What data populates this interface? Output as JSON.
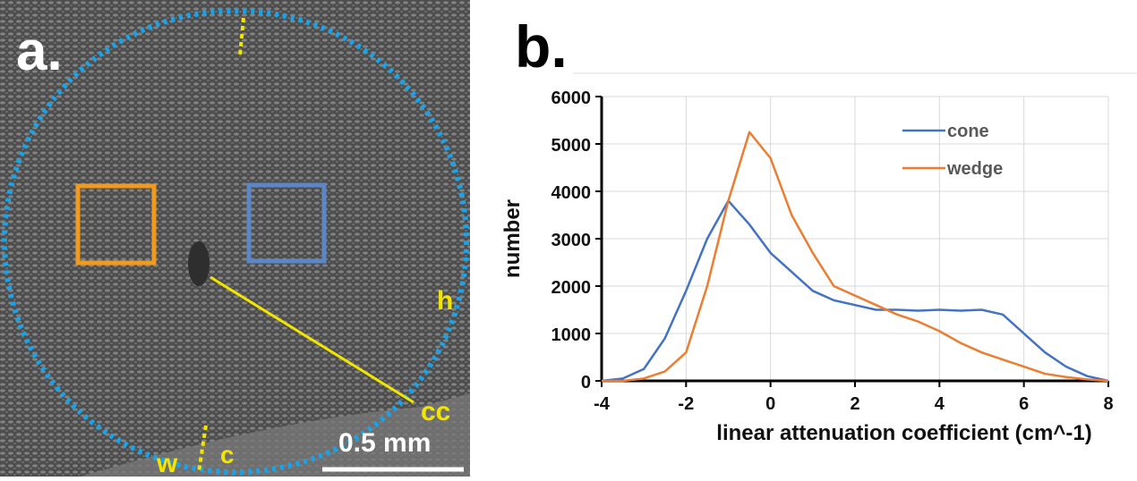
{
  "panel_a": {
    "label": "a.",
    "annotations": [
      "h",
      "cc",
      "w",
      "c"
    ],
    "scale_bar": "0.5 mm"
  },
  "panel_b_label": "b.",
  "chart_data": {
    "type": "line",
    "x_label": "linear attenuation coefficient (cm^-1)",
    "y_label": "number",
    "x": [
      -4,
      -3.5,
      -3,
      -2.5,
      -2,
      -1.5,
      -1,
      -0.5,
      0,
      0.5,
      1,
      1.5,
      2,
      2.5,
      3,
      3.5,
      4,
      4.5,
      5,
      5.5,
      6,
      6.5,
      7,
      7.5,
      8
    ],
    "series": [
      {
        "name": "cone",
        "color": "#4472c4",
        "values": [
          0,
          50,
          250,
          900,
          1900,
          3000,
          3800,
          3300,
          2700,
          2300,
          1900,
          1700,
          1600,
          1500,
          1500,
          1480,
          1500,
          1480,
          1500,
          1400,
          1000,
          600,
          300,
          100,
          0
        ]
      },
      {
        "name": "wedge",
        "color": "#ed7d31",
        "values": [
          0,
          0,
          50,
          200,
          600,
          2000,
          3800,
          5250,
          4700,
          3500,
          2700,
          2000,
          1800,
          1600,
          1400,
          1250,
          1050,
          800,
          600,
          450,
          300,
          150,
          80,
          30,
          0
        ]
      }
    ],
    "xlim": [
      -4,
      8
    ],
    "xticks": [
      -4,
      -2,
      0,
      2,
      4,
      6,
      8
    ],
    "ylim": [
      0,
      6000
    ],
    "yticks": [
      0,
      1000,
      2000,
      3000,
      4000,
      5000,
      6000
    ],
    "grid": true,
    "legend": "top-right"
  }
}
